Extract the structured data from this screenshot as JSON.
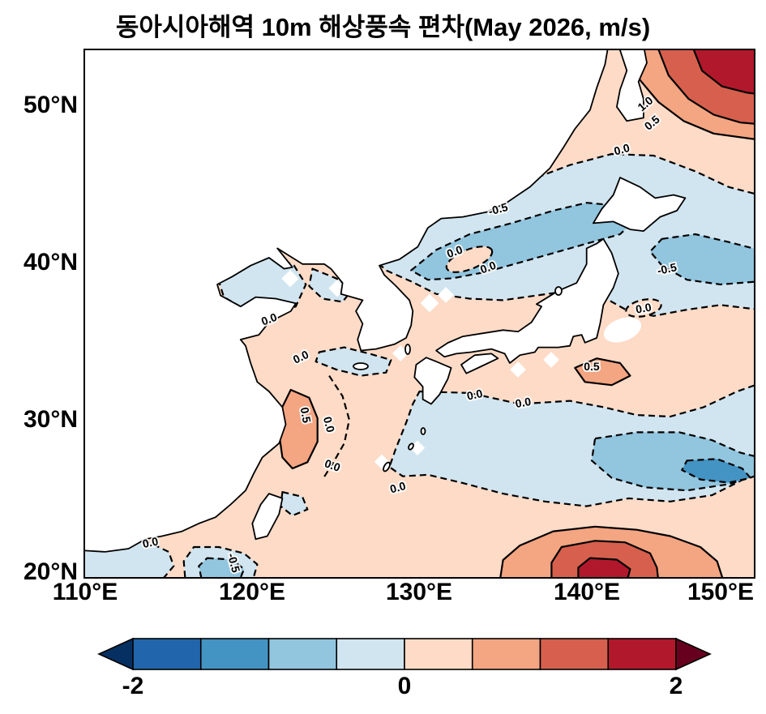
{
  "title": "동아시아해역 10m 해상풍속 편차(May 2026, m/s)",
  "chart_data": {
    "type": "heatmap",
    "subtype": "filled-contour-map",
    "title": "동아시아해역 10m 해상풍속 편차(May 2026, m/s)",
    "variable": "10 m sea surface wind speed anomaly",
    "units": "m/s",
    "period": "May 2026",
    "region": "East Asian seas (110°E–150°E, 20°N–53.5°N)",
    "x_axis": {
      "label": "Longitude",
      "range": [
        110,
        150
      ],
      "ticks": [
        "110°E",
        "120°E",
        "130°E",
        "140°E",
        "150°E"
      ]
    },
    "y_axis": {
      "label": "Latitude",
      "range": [
        20,
        53.5
      ],
      "ticks": [
        "50°N",
        "40°N",
        "30°N",
        "20°N"
      ]
    },
    "contour_levels": [
      -2,
      -1.5,
      -1,
      -0.5,
      0,
      0.5,
      1,
      1.5,
      2
    ],
    "colorbar": {
      "min": -2,
      "max": 2,
      "extend": "both",
      "ticks": [
        "-2",
        "0",
        "2"
      ],
      "colors": [
        "#053061",
        "#2166ac",
        "#4393c3",
        "#92c5de",
        "#d1e5f0",
        "#fddbc7",
        "#f4a582",
        "#d6604d",
        "#b2182b",
        "#67001f"
      ]
    },
    "contour_labels": [
      {
        "text": "1.0",
        "lon": 143.5,
        "lat": 50.1,
        "rot": -40
      },
      {
        "text": "0.5",
        "lon": 143.9,
        "lat": 48.9,
        "rot": -40
      },
      {
        "text": "0.0",
        "lon": 142.1,
        "lat": 47.2,
        "rot": -15
      },
      {
        "text": "-0.5",
        "lon": 134.7,
        "lat": 43.4,
        "rot": -15
      },
      {
        "text": "0.0",
        "lon": 132.1,
        "lat": 40.7,
        "rot": -20
      },
      {
        "text": "0.0",
        "lon": 134.1,
        "lat": 39.7,
        "rot": -20
      },
      {
        "text": "-0.5",
        "lon": 144.8,
        "lat": 39.6,
        "rot": -12
      },
      {
        "text": "0.0",
        "lon": 143.4,
        "lat": 37.1,
        "rot": -10
      },
      {
        "text": "0.0",
        "lon": 121.0,
        "lat": 36.4,
        "rot": -20
      },
      {
        "text": "0.0",
        "lon": 122.9,
        "lat": 34.0,
        "rot": -25
      },
      {
        "text": "0.5",
        "lon": 140.3,
        "lat": 33.4,
        "rot": 0
      },
      {
        "text": "0.0",
        "lon": 133.3,
        "lat": 31.6,
        "rot": -12
      },
      {
        "text": "0.0",
        "lon": 136.2,
        "lat": 31.1,
        "rot": -10
      },
      {
        "text": "0.5",
        "lon": 123.2,
        "lat": 30.3,
        "rot": 80
      },
      {
        "text": "0.0",
        "lon": 124.6,
        "lat": 29.7,
        "rot": 75
      },
      {
        "text": "0.0",
        "lon": 124.8,
        "lat": 27.1,
        "rot": 20
      },
      {
        "text": "0.0",
        "lon": 128.7,
        "lat": 25.7,
        "rot": -15
      },
      {
        "text": "0.0",
        "lon": 113.9,
        "lat": 22.2,
        "rot": -12
      },
      {
        "text": "-0.5",
        "lon": 118.9,
        "lat": 20.9,
        "rot": 75
      }
    ],
    "anomaly_centers": [
      {
        "sign": "positive",
        "approx_value_ms": "> 1.5",
        "lon": 148,
        "lat": 52
      },
      {
        "sign": "positive",
        "approx_value_ms": "1 to 1.5",
        "lon": 140.5,
        "lat": 21
      },
      {
        "sign": "positive",
        "approx_value_ms": "0.5 to 1",
        "lon": 123,
        "lat": 29.5
      },
      {
        "sign": "positive",
        "approx_value_ms": "0.5 to 1",
        "lon": 140.5,
        "lat": 33
      },
      {
        "sign": "negative",
        "approx_value_ms": "-0.5 to -1",
        "lon": 136,
        "lat": 42.5
      },
      {
        "sign": "negative",
        "approx_value_ms": "-1 to -1.5",
        "lon": 147.5,
        "lat": 26.5
      }
    ]
  }
}
